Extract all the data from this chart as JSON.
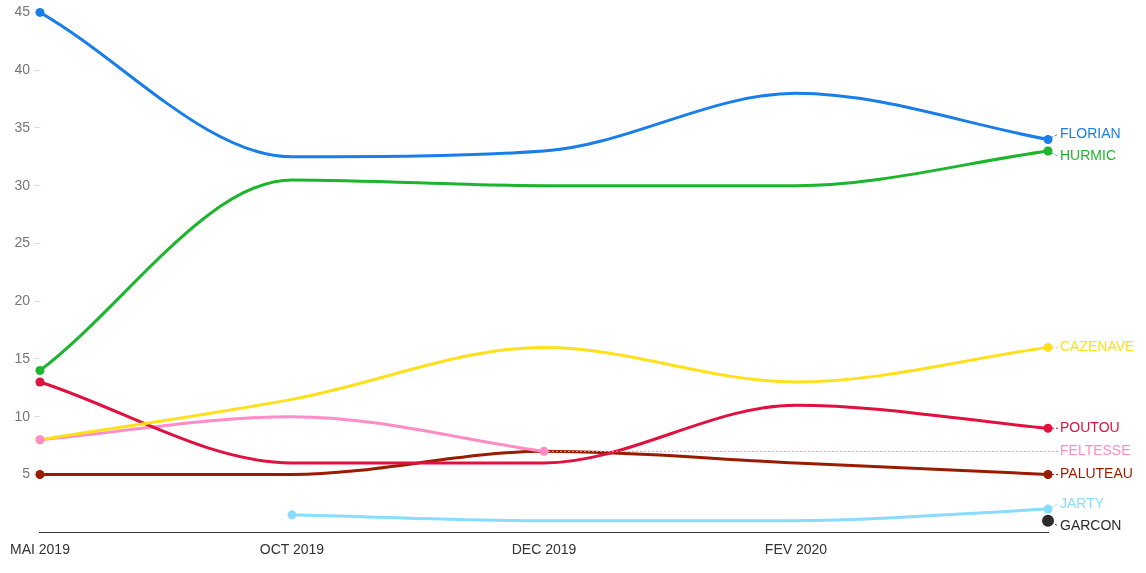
{
  "chart_data": {
    "type": "line",
    "categories": [
      "MAI 2019",
      "OCT 2019",
      "DEC 2019",
      "FEV 2020",
      null
    ],
    "ylim": [
      0,
      45
    ],
    "yticks": [
      5,
      10,
      15,
      20,
      25,
      30,
      35,
      40,
      45
    ],
    "grid": false,
    "legend": "right",
    "line_style": "solid",
    "series": [
      {
        "name": "FLORIAN",
        "color": "#1a7ee8",
        "values": [
          45,
          32.5,
          33,
          38,
          34
        ]
      },
      {
        "name": "HURMIC",
        "color": "#1cb52e",
        "values": [
          14,
          30.5,
          30,
          30,
          33
        ]
      },
      {
        "name": "CAZENAVE",
        "color": "#ffe01a",
        "values": [
          8,
          11.5,
          16,
          13,
          16
        ]
      },
      {
        "name": "POUTOU",
        "color": "#e0103f",
        "values": [
          13,
          6,
          6,
          11,
          9
        ]
      },
      {
        "name": "FELTESSE",
        "color": "#ff8cc6",
        "values": [
          8,
          10,
          7,
          null,
          null
        ]
      },
      {
        "name": "PALUTEAU",
        "color": "#9a1c00",
        "values": [
          5,
          5,
          7,
          6,
          5
        ]
      },
      {
        "name": "JARTY",
        "color": "#88dcff",
        "values": [
          null,
          1.5,
          1,
          1,
          2
        ]
      },
      {
        "name": "GARCON",
        "color": "#2b2b2b",
        "marker": "circle",
        "values": [
          null,
          null,
          null,
          null,
          1
        ]
      }
    ]
  }
}
